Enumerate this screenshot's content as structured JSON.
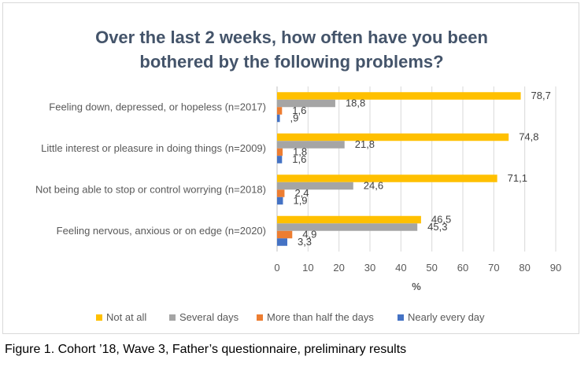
{
  "chart_data": {
    "type": "bar",
    "orientation": "horizontal",
    "title_lines": [
      "Over the last 2 weeks, how often have you been",
      "bothered by the following problems?"
    ],
    "xlabel": "%",
    "ylabel": "",
    "xlim": [
      0,
      90
    ],
    "x_ticks": [
      "0",
      "10",
      "20",
      "30",
      "40",
      "50",
      "60",
      "70",
      "80",
      "90"
    ],
    "grid": "vertical",
    "legend_position": "bottom",
    "categories": [
      "Feeling down, depressed, or hopeless (n=2017)",
      "Little interest or pleasure in doing things (n=2009)",
      "Not being able to stop or control worrying (n=2018)",
      "Feeling nervous, anxious or on edge (n=2020)"
    ],
    "series": [
      {
        "name": "Not  at all",
        "color": "#ffc000",
        "values": [
          78.7,
          74.8,
          71.1,
          46.5
        ],
        "labels": [
          "78,7",
          "74,8",
          "71,1",
          "46,5"
        ]
      },
      {
        "name": "Several days",
        "color": "#a5a5a5",
        "values": [
          18.8,
          21.8,
          24.6,
          45.3
        ],
        "labels": [
          "18,8",
          "21,8",
          "24,6",
          "45,3"
        ]
      },
      {
        "name": "More than half the days",
        "color": "#ed7d31",
        "values": [
          1.6,
          1.8,
          2.4,
          4.9
        ],
        "labels": [
          "1,6",
          "1,8",
          "2,4",
          "4,9"
        ]
      },
      {
        "name": "Nearly every day",
        "color": "#4472c4",
        "values": [
          0.9,
          1.6,
          1.9,
          3.3
        ],
        "labels": [
          ",9",
          "1,6",
          "1,9",
          "3,3"
        ]
      }
    ]
  },
  "caption": "Figure 1. Cohort ’18, Wave 3, Father’s questionnaire, preliminary results"
}
